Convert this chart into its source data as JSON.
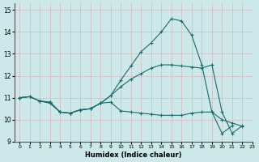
{
  "xlabel": "Humidex (Indice chaleur)",
  "bg_color": "#cce8e8",
  "grid_color": "#b8d8d8",
  "line_color": "#1a6b6b",
  "xlim": [
    -0.5,
    23
  ],
  "ylim": [
    9,
    15.3
  ],
  "yticks": [
    9,
    10,
    11,
    12,
    13,
    14,
    15
  ],
  "xticks": [
    0,
    1,
    2,
    3,
    4,
    5,
    6,
    7,
    8,
    9,
    10,
    11,
    12,
    13,
    14,
    15,
    16,
    17,
    18,
    19,
    20,
    21,
    22,
    23
  ],
  "series": [
    {
      "x": [
        0,
        1,
        2,
        3,
        4,
        5,
        6,
        7,
        8,
        9,
        10,
        11,
        12,
        13,
        14,
        15,
        16,
        17,
        18,
        19,
        20,
        21,
        22
      ],
      "y": [
        11.0,
        11.05,
        10.85,
        10.8,
        10.35,
        10.3,
        10.45,
        10.5,
        10.75,
        11.1,
        11.8,
        12.45,
        13.1,
        13.5,
        14.0,
        14.6,
        14.5,
        13.85,
        12.5,
        10.35,
        9.38,
        9.72,
        null
      ]
    },
    {
      "x": [
        0,
        1,
        2,
        3,
        4,
        5,
        6,
        7,
        8,
        9,
        10,
        11,
        12,
        13,
        14,
        15,
        16,
        17,
        18,
        19,
        20,
        21,
        22
      ],
      "y": [
        11.0,
        11.05,
        10.85,
        10.8,
        10.35,
        10.3,
        10.45,
        10.5,
        10.75,
        11.1,
        11.5,
        11.85,
        12.1,
        12.35,
        12.5,
        12.5,
        12.45,
        12.4,
        12.35,
        12.5,
        10.35,
        9.38,
        9.72
      ]
    },
    {
      "x": [
        0,
        1,
        2,
        3,
        4,
        5,
        6,
        7,
        8,
        9,
        10,
        11,
        12,
        13,
        14,
        15,
        16,
        17,
        18,
        19,
        20,
        21,
        22
      ],
      "y": [
        11.0,
        11.05,
        10.85,
        10.75,
        10.35,
        10.3,
        10.45,
        10.5,
        10.75,
        10.8,
        10.4,
        10.35,
        10.3,
        10.25,
        10.2,
        10.2,
        10.2,
        10.3,
        10.35,
        10.35,
        10.0,
        9.85,
        9.7
      ]
    }
  ]
}
